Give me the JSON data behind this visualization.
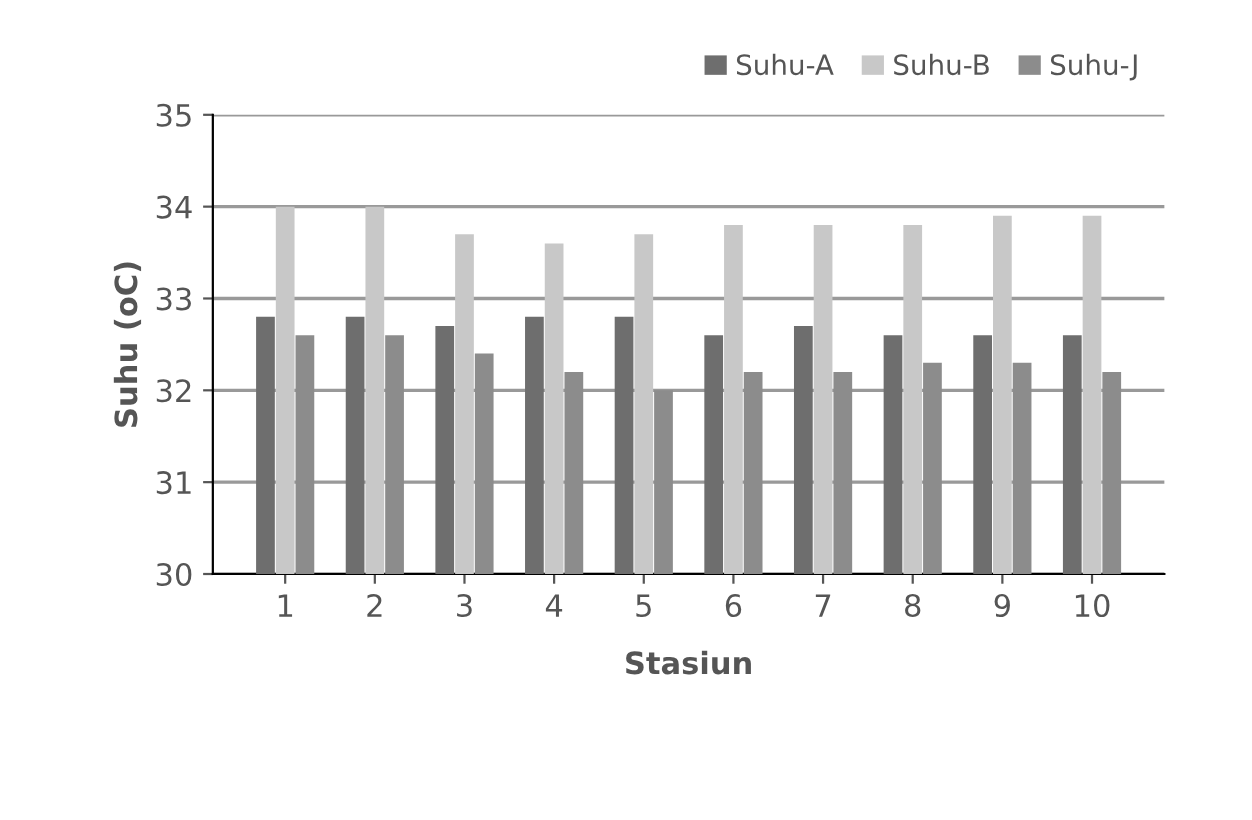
{
  "chart_data": {
    "type": "bar",
    "xlabel": "Stasiun",
    "ylabel": "Suhu (oC)",
    "categories": [
      "1",
      "2",
      "3",
      "4",
      "5",
      "6",
      "7",
      "8",
      "9",
      "10"
    ],
    "series": [
      {
        "name": "Suhu-A",
        "color": "#6e6e6e",
        "values": [
          32.8,
          32.8,
          32.7,
          32.8,
          32.8,
          32.6,
          32.7,
          32.6,
          32.6,
          32.6
        ]
      },
      {
        "name": "Suhu-B",
        "color": "#c8c8c8",
        "values": [
          34.0,
          34.0,
          33.7,
          33.6,
          33.7,
          33.8,
          33.8,
          33.8,
          33.9,
          33.9
        ]
      },
      {
        "name": "Suhu-J",
        "color": "#8c8c8c",
        "values": [
          32.6,
          32.6,
          32.4,
          32.2,
          32.0,
          32.2,
          32.2,
          32.3,
          32.3,
          32.2
        ]
      }
    ],
    "ylim": [
      30,
      35
    ],
    "yticks": [
      30,
      31,
      32,
      33,
      34,
      35
    ],
    "grid": "y",
    "legend": "top right"
  }
}
